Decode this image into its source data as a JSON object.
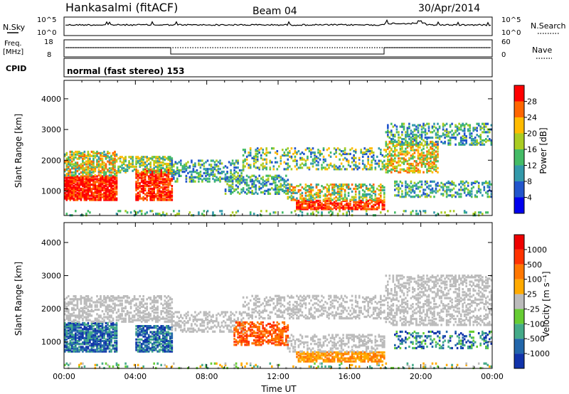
{
  "header": {
    "title": "Hankasalmi (fitACF)",
    "beam": "Beam 04",
    "date": "30/Apr/2014"
  },
  "strip": {
    "nsky_label": "N.Sky",
    "nsky_ticks": [
      "10^5",
      "10^0"
    ],
    "nsearch_label": "N.Search",
    "nsearch_ticks": [
      "10^5",
      "10^0"
    ],
    "freq_label": "Freq.",
    "freq_unit": "[MHz]",
    "freq_ticks": [
      "18",
      "8"
    ],
    "nave_label": "Nave",
    "nave_ticks": [
      "60",
      "0"
    ],
    "cpid_label": "CPID",
    "cpid_text": "normal (fast stereo) 153"
  },
  "chart_data": [
    {
      "type": "heatmap",
      "title": "",
      "xlabel": "",
      "ylabel": "Slant Range [km]",
      "xlim": [
        0,
        24
      ],
      "ylim": [
        200,
        4600
      ],
      "y_ticks": [
        "1000",
        "2000",
        "3000",
        "4000"
      ],
      "colorbar": {
        "label": "Power [dB]",
        "ticks": [
          "4",
          "8",
          "12",
          "16",
          "20",
          "24",
          "28"
        ],
        "colors": [
          "#0000ee",
          "#2255cc",
          "#3399aa",
          "#44bb66",
          "#aacc22",
          "#ffbb00",
          "#ff6600",
          "#ff0000"
        ]
      }
    },
    {
      "type": "heatmap",
      "title": "",
      "xlabel": "Time UT",
      "ylabel": "Slant Range [km]",
      "xlim": [
        0,
        24
      ],
      "ylim": [
        200,
        4600
      ],
      "x_ticks": [
        "00:00",
        "04:00",
        "08:00",
        "12:00",
        "16:00",
        "20:00",
        "00:00"
      ],
      "y_ticks": [
        "1000",
        "2000",
        "3000",
        "4000"
      ],
      "colorbar": {
        "label": "Velocity [m s⁻¹]",
        "ticks": [
          "1000",
          "500",
          "100",
          "25",
          "-25",
          "-100",
          "-500",
          "-1000"
        ],
        "colors": [
          "#1133aa",
          "#2266aa",
          "#44aa88",
          "#66cc33",
          "#bbbbbb",
          "#ffaa00",
          "#ff7700",
          "#ff3300",
          "#ee0000"
        ]
      }
    }
  ]
}
